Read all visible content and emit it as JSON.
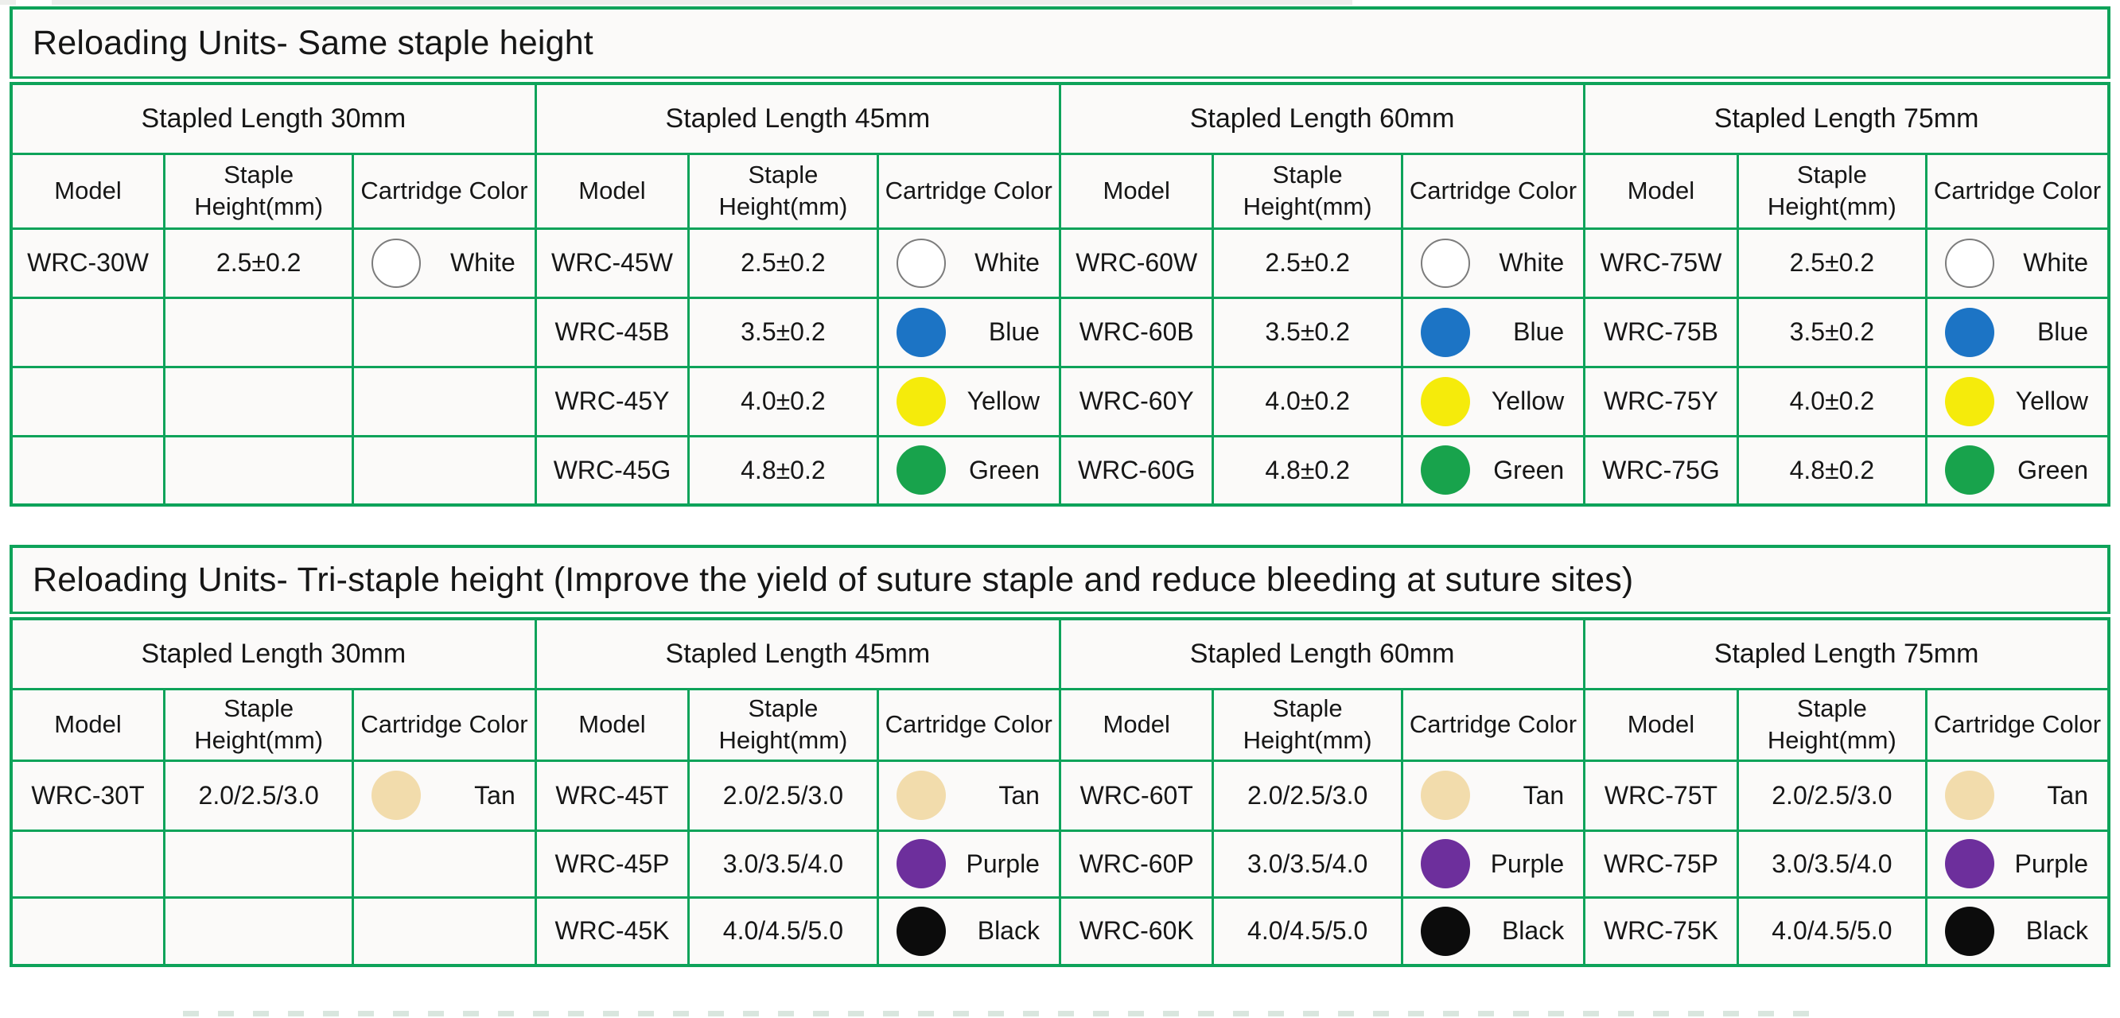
{
  "page": {
    "background": "#ffffff",
    "table_border_color": "#0ea35a",
    "cell_background": "#fbfaf9"
  },
  "palette": {
    "White": {
      "fill": "#ffffff",
      "outline": "#7c7c7c"
    },
    "Blue": {
      "fill": "#1c74c5"
    },
    "Yellow": {
      "fill": "#f5eb0b"
    },
    "Green": {
      "fill": "#18a34c"
    },
    "Tan": {
      "fill": "#f2dcac"
    },
    "Purple": {
      "fill": "#6d2f9c"
    },
    "Black": {
      "fill": "#0c0c0c"
    }
  },
  "tables": [
    {
      "title": "Reloading Units- Same staple height",
      "groups": [
        {
          "header": "Stapled Length 30mm"
        },
        {
          "header": "Stapled Length 45mm"
        },
        {
          "header": "Stapled Length 60mm"
        },
        {
          "header": "Stapled Length 75mm"
        }
      ],
      "col_headers": [
        "Model",
        "Staple Height(mm)",
        "Cartridge Color"
      ],
      "rows": [
        {
          "cells": [
            {
              "model": "WRC-30W",
              "height": "2.5±0.2",
              "color": "White"
            },
            {
              "model": "WRC-45W",
              "height": "2.5±0.2",
              "color": "White"
            },
            {
              "model": "WRC-60W",
              "height": "2.5±0.2",
              "color": "White"
            },
            {
              "model": "WRC-75W",
              "height": "2.5±0.2",
              "color": "White"
            }
          ]
        },
        {
          "cells": [
            null,
            {
              "model": "WRC-45B",
              "height": "3.5±0.2",
              "color": "Blue"
            },
            {
              "model": "WRC-60B",
              "height": "3.5±0.2",
              "color": "Blue"
            },
            {
              "model": "WRC-75B",
              "height": "3.5±0.2",
              "color": "Blue"
            }
          ]
        },
        {
          "cells": [
            null,
            {
              "model": "WRC-45Y",
              "height": "4.0±0.2",
              "color": "Yellow"
            },
            {
              "model": "WRC-60Y",
              "height": "4.0±0.2",
              "color": "Yellow"
            },
            {
              "model": "WRC-75Y",
              "height": "4.0±0.2",
              "color": "Yellow"
            }
          ]
        },
        {
          "cells": [
            null,
            {
              "model": "WRC-45G",
              "height": "4.8±0.2",
              "color": "Green"
            },
            {
              "model": "WRC-60G",
              "height": "4.8±0.2",
              "color": "Green"
            },
            {
              "model": "WRC-75G",
              "height": "4.8±0.2",
              "color": "Green"
            }
          ]
        }
      ]
    },
    {
      "title": "Reloading Units- Tri-staple height (Improve the yield of suture staple and reduce bleeding at suture sites)",
      "groups": [
        {
          "header": "Stapled Length 30mm"
        },
        {
          "header": "Stapled Length 45mm"
        },
        {
          "header": "Stapled Length 60mm"
        },
        {
          "header": "Stapled Length 75mm"
        }
      ],
      "col_headers": [
        "Model",
        "Staple Height(mm)",
        "Cartridge Color"
      ],
      "rows": [
        {
          "cells": [
            {
              "model": "WRC-30T",
              "height": "2.0/2.5/3.0",
              "color": "Tan"
            },
            {
              "model": "WRC-45T",
              "height": "2.0/2.5/3.0",
              "color": "Tan"
            },
            {
              "model": "WRC-60T",
              "height": "2.0/2.5/3.0",
              "color": "Tan"
            },
            {
              "model": "WRC-75T",
              "height": "2.0/2.5/3.0",
              "color": "Tan"
            }
          ]
        },
        {
          "cells": [
            null,
            {
              "model": "WRC-45P",
              "height": "3.0/3.5/4.0",
              "color": "Purple"
            },
            {
              "model": "WRC-60P",
              "height": "3.0/3.5/4.0",
              "color": "Purple"
            },
            {
              "model": "WRC-75P",
              "height": "3.0/3.5/4.0",
              "color": "Purple"
            }
          ]
        },
        {
          "cells": [
            null,
            {
              "model": "WRC-45K",
              "height": "4.0/4.5/5.0",
              "color": "Black"
            },
            {
              "model": "WRC-60K",
              "height": "4.0/4.5/5.0",
              "color": "Black"
            },
            {
              "model": "WRC-75K",
              "height": "4.0/4.5/5.0",
              "color": "Black"
            }
          ]
        }
      ]
    }
  ]
}
